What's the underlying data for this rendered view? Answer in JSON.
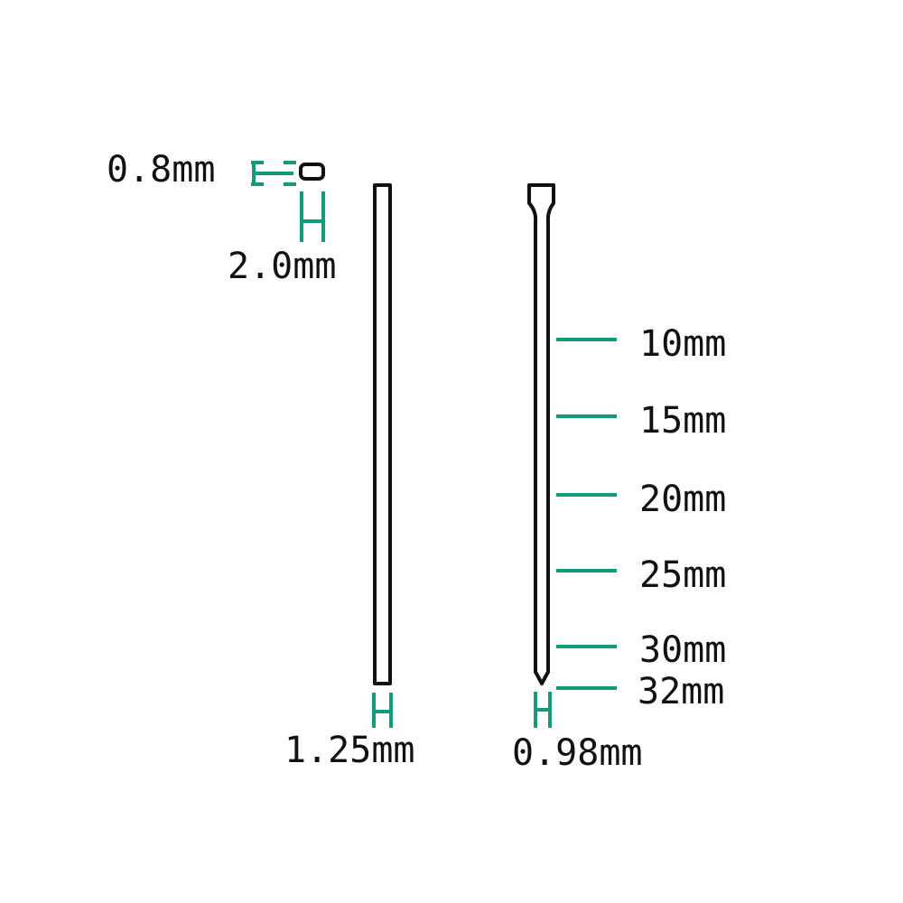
{
  "colors": {
    "accent": "#129a7a",
    "outline": "#111111",
    "background": "#ffffff"
  },
  "cross_section": {
    "thickness_label": "0.8mm",
    "width_label": "2.0mm"
  },
  "brad_nail": {
    "diameter_label": "1.25mm"
  },
  "pin_nail": {
    "diameter_label": "0.98mm",
    "lengths": [
      "10mm",
      "15mm",
      "20mm",
      "25mm",
      "30mm",
      "32mm"
    ]
  }
}
